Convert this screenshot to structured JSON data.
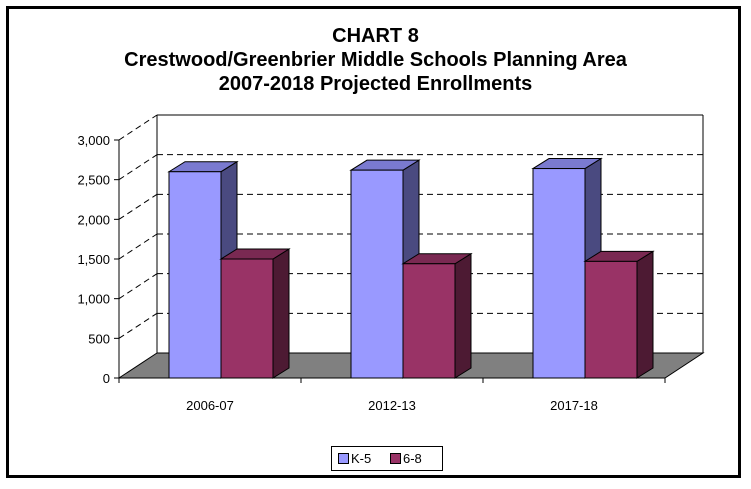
{
  "chart_data": {
    "type": "bar",
    "title": [
      "CHART 8",
      "Crestwood/Greenbrier Middle Schools Planning Area",
      "2007-2018 Projected Enrollments"
    ],
    "categories": [
      "2006-07",
      "2012-13",
      "2017-18"
    ],
    "series": [
      {
        "name": "K-5",
        "values": [
          2600,
          2620,
          2640
        ],
        "color": "#9999ff",
        "side_color": "#4a4a80",
        "top_color": "#7a7ad0"
      },
      {
        "name": "6-8",
        "values": [
          1500,
          1440,
          1470
        ],
        "color": "#993366",
        "side_color": "#4d1a33",
        "top_color": "#7a2952"
      }
    ],
    "y_ticks": [
      "0",
      "500",
      "1,000",
      "1,500",
      "2,000",
      "2,500",
      "3,000"
    ],
    "ylim": [
      0,
      3000
    ],
    "grid": true,
    "legend_position": "bottom",
    "floor_color": "#808080"
  }
}
